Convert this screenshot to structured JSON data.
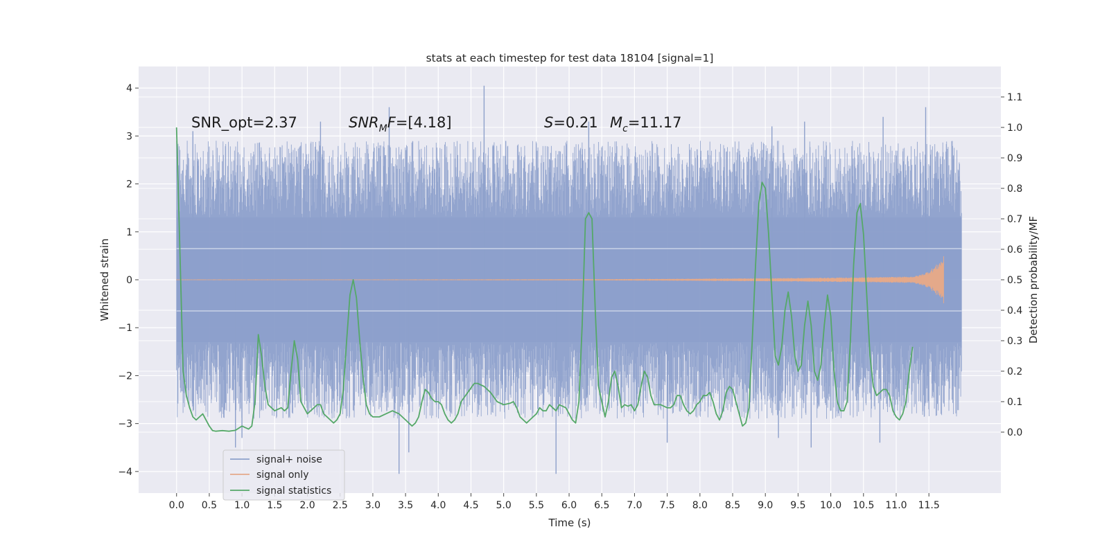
{
  "chart_data": {
    "type": "line",
    "title": "stats at each timestep for test data 18104 [signal=1]",
    "xlabel": "Time (s)",
    "ylabel": "Whitened strain",
    "ylabel_right": "Detection probability/MF",
    "xlim": [
      -0.58,
      12.6
    ],
    "ylim": [
      -4.45,
      4.45
    ],
    "ylim_right": [
      -0.2,
      1.2
    ],
    "x_ticks": [
      "0.0",
      "0.5",
      "1.0",
      "1.5",
      "2.0",
      "2.5",
      "3.0",
      "3.5",
      "4.0",
      "4.5",
      "5.0",
      "5.5",
      "6.0",
      "6.5",
      "7.0",
      "7.5",
      "8.0",
      "8.5",
      "9.0",
      "9.5",
      "10.0",
      "10.5",
      "11.0",
      "11.5"
    ],
    "y_ticks": [
      "−4",
      "−3",
      "−2",
      "−1",
      "0",
      "1",
      "2",
      "3",
      "4"
    ],
    "y_ticks_right": [
      "0.0",
      "0.1",
      "0.2",
      "0.3",
      "0.4",
      "0.5",
      "0.6",
      "0.7",
      "0.8",
      "0.9",
      "1.0",
      "1.1"
    ],
    "grid": true,
    "legend_position": "lower-left",
    "annotations": [
      {
        "key": "snr-opt",
        "text": "SNR_opt=2.37"
      },
      {
        "key": "snr-mf",
        "text": "=[4.18]",
        "math_base": "SNR",
        "math_sub": "M",
        "math_tail": "F"
      },
      {
        "key": "spin",
        "text": "=0.21",
        "math_base": "S"
      },
      {
        "key": "chirp-mass",
        "text": "=11.17",
        "math_base": "M",
        "math_sub": "c"
      }
    ],
    "series": [
      {
        "name": "signal+ noise",
        "color": "#8da0cb",
        "axis": "left",
        "kind": "noise",
        "x_range": [
          0.0,
          12.0
        ],
        "core_band": [
          -1.3,
          1.3
        ],
        "envelope": [
          -2.6,
          2.6
        ],
        "peaks": [
          {
            "x": 0.25,
            "y": 3.1
          },
          {
            "x": 2.2,
            "y": 3.3
          },
          {
            "x": 3.25,
            "y": 3.6
          },
          {
            "x": 4.7,
            "y": 4.05
          },
          {
            "x": 6.3,
            "y": 3.3
          },
          {
            "x": 9.1,
            "y": 3.2
          },
          {
            "x": 9.6,
            "y": 3.3
          },
          {
            "x": 10.8,
            "y": 3.4
          },
          {
            "x": 11.45,
            "y": 3.6
          },
          {
            "x": 0.9,
            "y": -3.5
          },
          {
            "x": 3.4,
            "y": -4.05
          },
          {
            "x": 3.55,
            "y": -3.6
          },
          {
            "x": 5.8,
            "y": -4.05
          },
          {
            "x": 7.5,
            "y": -3.4
          },
          {
            "x": 9.7,
            "y": -3.5
          },
          {
            "x": 10.75,
            "y": -3.4
          },
          {
            "x": 1.0,
            "y": -3.3
          },
          {
            "x": 9.2,
            "y": -3.3
          }
        ]
      },
      {
        "name": "signal only",
        "color": "#e4a98a",
        "axis": "left",
        "kind": "chirp",
        "x_range": [
          0.0,
          11.73
        ],
        "amplitude_end": 0.5
      },
      {
        "name": "signal statistics",
        "color": "#55a868",
        "axis": "right",
        "kind": "line",
        "points": [
          [
            0.0,
            1.0
          ],
          [
            0.05,
            0.6
          ],
          [
            0.1,
            0.2
          ],
          [
            0.15,
            0.12
          ],
          [
            0.2,
            0.08
          ],
          [
            0.25,
            0.05
          ],
          [
            0.3,
            0.04
          ],
          [
            0.35,
            0.05
          ],
          [
            0.4,
            0.06
          ],
          [
            0.45,
            0.04
          ],
          [
            0.5,
            0.02
          ],
          [
            0.55,
            0.005
          ],
          [
            0.6,
            0.003
          ],
          [
            0.7,
            0.005
          ],
          [
            0.8,
            0.003
          ],
          [
            0.9,
            0.006
          ],
          [
            1.0,
            0.02
          ],
          [
            1.05,
            0.015
          ],
          [
            1.1,
            0.01
          ],
          [
            1.15,
            0.02
          ],
          [
            1.2,
            0.1
          ],
          [
            1.25,
            0.32
          ],
          [
            1.3,
            0.25
          ],
          [
            1.35,
            0.15
          ],
          [
            1.4,
            0.09
          ],
          [
            1.45,
            0.08
          ],
          [
            1.5,
            0.07
          ],
          [
            1.55,
            0.075
          ],
          [
            1.6,
            0.08
          ],
          [
            1.65,
            0.07
          ],
          [
            1.7,
            0.08
          ],
          [
            1.75,
            0.2
          ],
          [
            1.8,
            0.3
          ],
          [
            1.85,
            0.24
          ],
          [
            1.9,
            0.1
          ],
          [
            1.95,
            0.08
          ],
          [
            2.0,
            0.06
          ],
          [
            2.05,
            0.07
          ],
          [
            2.1,
            0.08
          ],
          [
            2.15,
            0.09
          ],
          [
            2.2,
            0.09
          ],
          [
            2.25,
            0.06
          ],
          [
            2.3,
            0.05
          ],
          [
            2.35,
            0.04
          ],
          [
            2.4,
            0.03
          ],
          [
            2.45,
            0.04
          ],
          [
            2.5,
            0.06
          ],
          [
            2.55,
            0.14
          ],
          [
            2.6,
            0.3
          ],
          [
            2.65,
            0.45
          ],
          [
            2.7,
            0.5
          ],
          [
            2.75,
            0.44
          ],
          [
            2.8,
            0.3
          ],
          [
            2.85,
            0.18
          ],
          [
            2.9,
            0.09
          ],
          [
            2.95,
            0.06
          ],
          [
            3.0,
            0.05
          ],
          [
            3.1,
            0.05
          ],
          [
            3.2,
            0.06
          ],
          [
            3.3,
            0.07
          ],
          [
            3.35,
            0.065
          ],
          [
            3.4,
            0.06
          ],
          [
            3.5,
            0.04
          ],
          [
            3.55,
            0.03
          ],
          [
            3.6,
            0.02
          ],
          [
            3.65,
            0.03
          ],
          [
            3.7,
            0.05
          ],
          [
            3.75,
            0.1
          ],
          [
            3.8,
            0.14
          ],
          [
            3.85,
            0.13
          ],
          [
            3.9,
            0.11
          ],
          [
            3.95,
            0.1
          ],
          [
            4.0,
            0.1
          ],
          [
            4.05,
            0.09
          ],
          [
            4.1,
            0.06
          ],
          [
            4.15,
            0.04
          ],
          [
            4.2,
            0.03
          ],
          [
            4.25,
            0.04
          ],
          [
            4.3,
            0.06
          ],
          [
            4.35,
            0.1
          ],
          [
            4.45,
            0.13
          ],
          [
            4.55,
            0.16
          ],
          [
            4.6,
            0.16
          ],
          [
            4.7,
            0.15
          ],
          [
            4.8,
            0.13
          ],
          [
            4.9,
            0.1
          ],
          [
            5.0,
            0.09
          ],
          [
            5.1,
            0.095
          ],
          [
            5.15,
            0.1
          ],
          [
            5.2,
            0.08
          ],
          [
            5.25,
            0.05
          ],
          [
            5.3,
            0.04
          ],
          [
            5.35,
            0.03
          ],
          [
            5.4,
            0.04
          ],
          [
            5.45,
            0.05
          ],
          [
            5.5,
            0.06
          ],
          [
            5.55,
            0.08
          ],
          [
            5.6,
            0.07
          ],
          [
            5.65,
            0.07
          ],
          [
            5.7,
            0.09
          ],
          [
            5.75,
            0.08
          ],
          [
            5.8,
            0.07
          ],
          [
            5.85,
            0.09
          ],
          [
            5.95,
            0.08
          ],
          [
            6.0,
            0.06
          ],
          [
            6.05,
            0.04
          ],
          [
            6.1,
            0.03
          ],
          [
            6.15,
            0.1
          ],
          [
            6.2,
            0.35
          ],
          [
            6.25,
            0.7
          ],
          [
            6.3,
            0.72
          ],
          [
            6.35,
            0.7
          ],
          [
            6.4,
            0.4
          ],
          [
            6.45,
            0.15
          ],
          [
            6.5,
            0.1
          ],
          [
            6.55,
            0.05
          ],
          [
            6.6,
            0.1
          ],
          [
            6.65,
            0.18
          ],
          [
            6.7,
            0.2
          ],
          [
            6.75,
            0.15
          ],
          [
            6.8,
            0.08
          ],
          [
            6.85,
            0.09
          ],
          [
            6.9,
            0.085
          ],
          [
            6.95,
            0.09
          ],
          [
            7.0,
            0.07
          ],
          [
            7.05,
            0.09
          ],
          [
            7.1,
            0.15
          ],
          [
            7.15,
            0.2
          ],
          [
            7.2,
            0.18
          ],
          [
            7.25,
            0.12
          ],
          [
            7.3,
            0.09
          ],
          [
            7.4,
            0.09
          ],
          [
            7.5,
            0.08
          ],
          [
            7.55,
            0.08
          ],
          [
            7.6,
            0.09
          ],
          [
            7.65,
            0.12
          ],
          [
            7.7,
            0.12
          ],
          [
            7.75,
            0.09
          ],
          [
            7.8,
            0.07
          ],
          [
            7.85,
            0.06
          ],
          [
            7.9,
            0.07
          ],
          [
            7.95,
            0.09
          ],
          [
            8.0,
            0.1
          ],
          [
            8.05,
            0.12
          ],
          [
            8.1,
            0.12
          ],
          [
            8.15,
            0.13
          ],
          [
            8.2,
            0.1
          ],
          [
            8.25,
            0.06
          ],
          [
            8.3,
            0.04
          ],
          [
            8.35,
            0.07
          ],
          [
            8.4,
            0.13
          ],
          [
            8.45,
            0.15
          ],
          [
            8.5,
            0.14
          ],
          [
            8.55,
            0.1
          ],
          [
            8.6,
            0.06
          ],
          [
            8.65,
            0.02
          ],
          [
            8.7,
            0.03
          ],
          [
            8.75,
            0.08
          ],
          [
            8.8,
            0.3
          ],
          [
            8.85,
            0.55
          ],
          [
            8.9,
            0.75
          ],
          [
            8.95,
            0.82
          ],
          [
            9.0,
            0.8
          ],
          [
            9.05,
            0.65
          ],
          [
            9.1,
            0.45
          ],
          [
            9.15,
            0.25
          ],
          [
            9.2,
            0.22
          ],
          [
            9.25,
            0.28
          ],
          [
            9.3,
            0.4
          ],
          [
            9.35,
            0.46
          ],
          [
            9.4,
            0.38
          ],
          [
            9.45,
            0.25
          ],
          [
            9.5,
            0.2
          ],
          [
            9.55,
            0.22
          ],
          [
            9.6,
            0.35
          ],
          [
            9.65,
            0.43
          ],
          [
            9.7,
            0.35
          ],
          [
            9.75,
            0.2
          ],
          [
            9.8,
            0.17
          ],
          [
            9.85,
            0.22
          ],
          [
            9.9,
            0.35
          ],
          [
            9.95,
            0.45
          ],
          [
            10.0,
            0.38
          ],
          [
            10.05,
            0.2
          ],
          [
            10.1,
            0.1
          ],
          [
            10.15,
            0.07
          ],
          [
            10.2,
            0.07
          ],
          [
            10.25,
            0.1
          ],
          [
            10.3,
            0.3
          ],
          [
            10.35,
            0.55
          ],
          [
            10.4,
            0.72
          ],
          [
            10.45,
            0.75
          ],
          [
            10.5,
            0.65
          ],
          [
            10.55,
            0.45
          ],
          [
            10.6,
            0.25
          ],
          [
            10.65,
            0.15
          ],
          [
            10.7,
            0.12
          ],
          [
            10.75,
            0.13
          ],
          [
            10.8,
            0.14
          ],
          [
            10.85,
            0.14
          ],
          [
            10.9,
            0.12
          ],
          [
            10.95,
            0.07
          ],
          [
            11.0,
            0.05
          ],
          [
            11.05,
            0.04
          ],
          [
            11.1,
            0.06
          ],
          [
            11.15,
            0.1
          ],
          [
            11.2,
            0.2
          ],
          [
            11.25,
            0.28
          ]
        ]
      }
    ]
  }
}
